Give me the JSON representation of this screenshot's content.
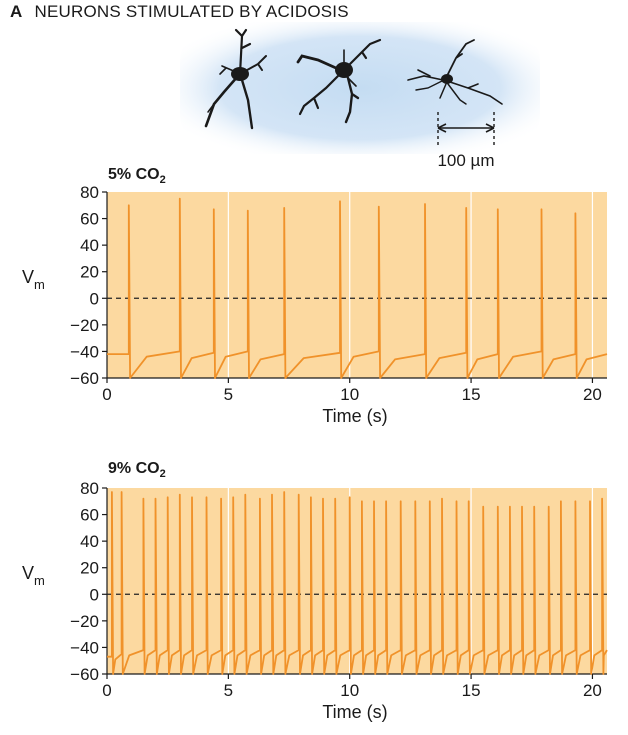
{
  "panel": {
    "letter": "A",
    "title": "NEURONS STIMULATED BY ACIDOSIS"
  },
  "scale_bar": {
    "label": "100 µm"
  },
  "colors": {
    "plot_bg": "#fcd9a0",
    "trace": "#f0922a",
    "zero_line": "#222222",
    "halo": "#b8d4ee"
  },
  "chart_data": [
    {
      "type": "line",
      "title": "5% CO",
      "title_sub": "2",
      "xlabel": "Time (s)",
      "ylabel": "V",
      "ylabel_sub": "m",
      "xlim": [
        0,
        20.6
      ],
      "ylim": [
        -60,
        80
      ],
      "xticks": [
        0,
        5,
        10,
        15,
        20
      ],
      "yticks": [
        80,
        60,
        40,
        20,
        0,
        -20,
        -40,
        -60
      ],
      "ytick_labels": [
        "80",
        "60",
        "40",
        "20",
        "0",
        "−20",
        "−40",
        "−60"
      ],
      "reference_line": 0,
      "grid": "vertical",
      "baseline_start": -42,
      "spike_times": [
        0.9,
        3.0,
        4.4,
        5.8,
        7.3,
        9.6,
        11.2,
        13.1,
        14.8,
        16.1,
        17.9,
        19.3
      ],
      "spike_peaks": [
        70,
        75,
        67,
        66,
        68,
        73,
        69,
        71,
        68,
        67,
        67,
        64
      ],
      "pre_spike_potential": [
        -42,
        -40,
        -41,
        -40,
        -42,
        -41,
        -40,
        -42,
        -41,
        -42,
        -40,
        -42
      ],
      "trough": -60
    },
    {
      "type": "line",
      "title": "9% CO",
      "title_sub": "2",
      "xlabel": "Time (s)",
      "ylabel": "V",
      "ylabel_sub": "m",
      "xlim": [
        0,
        20.6
      ],
      "ylim": [
        -60,
        80
      ],
      "xticks": [
        0,
        5,
        10,
        15,
        20
      ],
      "yticks": [
        80,
        60,
        40,
        20,
        0,
        -20,
        -40,
        -60
      ],
      "ytick_labels": [
        "80",
        "60",
        "40",
        "20",
        "0",
        "−20",
        "−40",
        "−60"
      ],
      "reference_line": 0,
      "grid": "vertical",
      "baseline_start": -47,
      "spike_times": [
        0.2,
        0.6,
        1.5,
        2.0,
        2.5,
        3.0,
        3.5,
        4.1,
        4.7,
        5.2,
        5.7,
        6.3,
        6.8,
        7.3,
        7.9,
        8.4,
        8.9,
        9.4,
        10.0,
        10.5,
        11.0,
        11.5,
        12.1,
        12.7,
        13.3,
        13.8,
        14.4,
        14.9,
        15.5,
        16.1,
        16.6,
        17.1,
        17.6,
        18.2,
        18.7,
        19.3,
        19.9,
        20.4
      ],
      "spike_peaks": [
        77,
        77,
        72,
        72,
        73,
        75,
        73,
        73,
        72,
        73,
        75,
        72,
        75,
        77,
        75,
        73,
        72,
        72,
        73,
        70,
        70,
        70,
        70,
        70,
        70,
        72,
        70,
        70,
        66,
        66,
        66,
        66,
        66,
        66,
        70,
        70,
        70,
        72
      ],
      "pre_spike_potential": [
        -47,
        -45,
        -42,
        -42,
        -42,
        -42,
        -42,
        -42,
        -42,
        -42,
        -42,
        -42,
        -42,
        -42,
        -42,
        -42,
        -42,
        -42,
        -42,
        -42,
        -42,
        -42,
        -42,
        -42,
        -42,
        -42,
        -42,
        -42,
        -42,
        -42,
        -42,
        -42,
        -42,
        -42,
        -42,
        -42,
        -42,
        -42
      ],
      "trough": -60
    }
  ]
}
